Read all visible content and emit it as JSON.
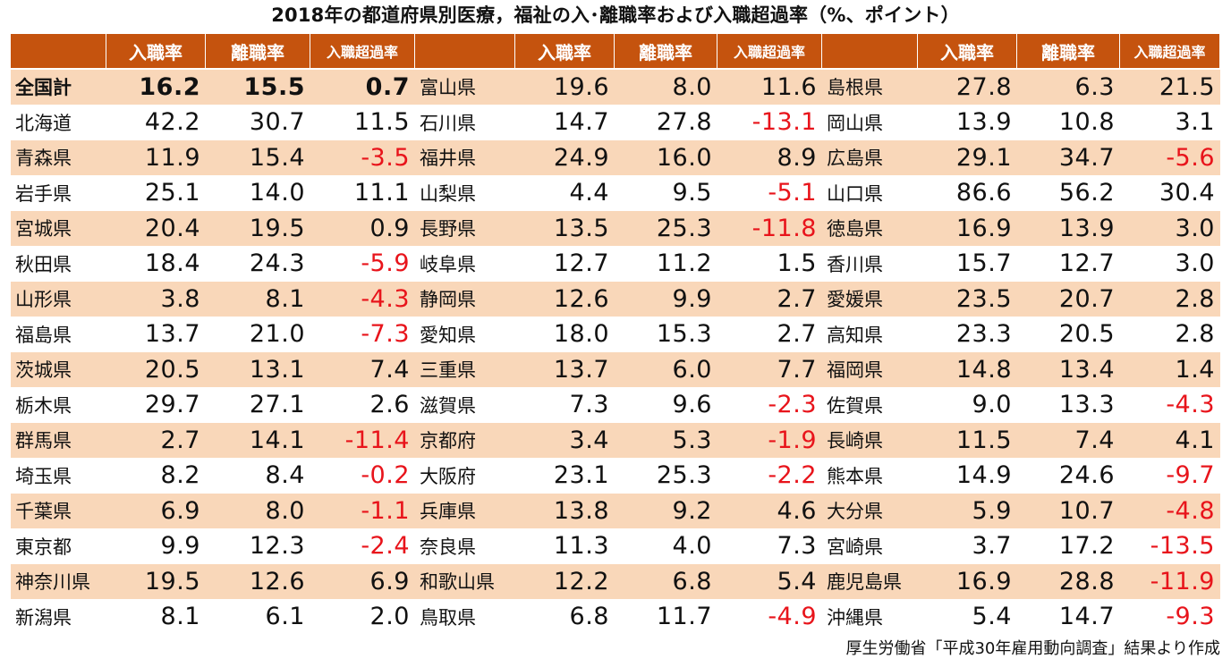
{
  "title": "2018年の都道府県別医療，福祉の入･離職率および入職超過率（%、ポイント）",
  "columns": {
    "entry": "入職率",
    "exit": "離職率",
    "excess": "入職超過率"
  },
  "rows": [
    [
      [
        "全国計",
        "16.2",
        "15.5",
        "0.7"
      ],
      [
        "富山県",
        "19.6",
        "8.0",
        "11.6"
      ],
      [
        "島根県",
        "27.8",
        "6.3",
        "21.5"
      ]
    ],
    [
      [
        "北海道",
        "42.2",
        "30.7",
        "11.5"
      ],
      [
        "石川県",
        "14.7",
        "27.8",
        "-13.1"
      ],
      [
        "岡山県",
        "13.9",
        "10.8",
        "3.1"
      ]
    ],
    [
      [
        "青森県",
        "11.9",
        "15.4",
        "-3.5"
      ],
      [
        "福井県",
        "24.9",
        "16.0",
        "8.9"
      ],
      [
        "広島県",
        "29.1",
        "34.7",
        "-5.6"
      ]
    ],
    [
      [
        "岩手県",
        "25.1",
        "14.0",
        "11.1"
      ],
      [
        "山梨県",
        "4.4",
        "9.5",
        "-5.1"
      ],
      [
        "山口県",
        "86.6",
        "56.2",
        "30.4"
      ]
    ],
    [
      [
        "宮城県",
        "20.4",
        "19.5",
        "0.9"
      ],
      [
        "長野県",
        "13.5",
        "25.3",
        "-11.8"
      ],
      [
        "徳島県",
        "16.9",
        "13.9",
        "3.0"
      ]
    ],
    [
      [
        "秋田県",
        "18.4",
        "24.3",
        "-5.9"
      ],
      [
        "岐阜県",
        "12.7",
        "11.2",
        "1.5"
      ],
      [
        "香川県",
        "15.7",
        "12.7",
        "3.0"
      ]
    ],
    [
      [
        "山形県",
        "3.8",
        "8.1",
        "-4.3"
      ],
      [
        "静岡県",
        "12.6",
        "9.9",
        "2.7"
      ],
      [
        "愛媛県",
        "23.5",
        "20.7",
        "2.8"
      ]
    ],
    [
      [
        "福島県",
        "13.7",
        "21.0",
        "-7.3"
      ],
      [
        "愛知県",
        "18.0",
        "15.3",
        "2.7"
      ],
      [
        "高知県",
        "23.3",
        "20.5",
        "2.8"
      ]
    ],
    [
      [
        "茨城県",
        "20.5",
        "13.1",
        "7.4"
      ],
      [
        "三重県",
        "13.7",
        "6.0",
        "7.7"
      ],
      [
        "福岡県",
        "14.8",
        "13.4",
        "1.4"
      ]
    ],
    [
      [
        "栃木県",
        "29.7",
        "27.1",
        "2.6"
      ],
      [
        "滋賀県",
        "7.3",
        "9.6",
        "-2.3"
      ],
      [
        "佐賀県",
        "9.0",
        "13.3",
        "-4.3"
      ]
    ],
    [
      [
        "群馬県",
        "2.7",
        "14.1",
        "-11.4"
      ],
      [
        "京都府",
        "3.4",
        "5.3",
        "-1.9"
      ],
      [
        "長崎県",
        "11.5",
        "7.4",
        "4.1"
      ]
    ],
    [
      [
        "埼玉県",
        "8.2",
        "8.4",
        "-0.2"
      ],
      [
        "大阪府",
        "23.1",
        "25.3",
        "-2.2"
      ],
      [
        "熊本県",
        "14.9",
        "24.6",
        "-9.7"
      ]
    ],
    [
      [
        "千葉県",
        "6.9",
        "8.0",
        "-1.1"
      ],
      [
        "兵庫県",
        "13.8",
        "9.2",
        "4.6"
      ],
      [
        "大分県",
        "5.9",
        "10.7",
        "-4.8"
      ]
    ],
    [
      [
        "東京都",
        "9.9",
        "12.3",
        "-2.4"
      ],
      [
        "奈良県",
        "11.3",
        "4.0",
        "7.3"
      ],
      [
        "宮崎県",
        "3.7",
        "17.2",
        "-13.5"
      ]
    ],
    [
      [
        "神奈川県",
        "19.5",
        "12.6",
        "6.9"
      ],
      [
        "和歌山県",
        "12.2",
        "6.8",
        "5.4"
      ],
      [
        "鹿児島県",
        "16.9",
        "28.8",
        "-11.9"
      ]
    ],
    [
      [
        "新潟県",
        "8.1",
        "6.1",
        "2.0"
      ],
      [
        "鳥取県",
        "6.8",
        "11.7",
        "-4.9"
      ],
      [
        "沖縄県",
        "5.4",
        "14.7",
        "-9.3"
      ]
    ]
  ],
  "colors": {
    "header": "#c5530e",
    "band": "#f9d7b9",
    "negative": "#e8141b"
  },
  "source": "厚生労働省「平成30年雇用動向調査」結果より作成"
}
